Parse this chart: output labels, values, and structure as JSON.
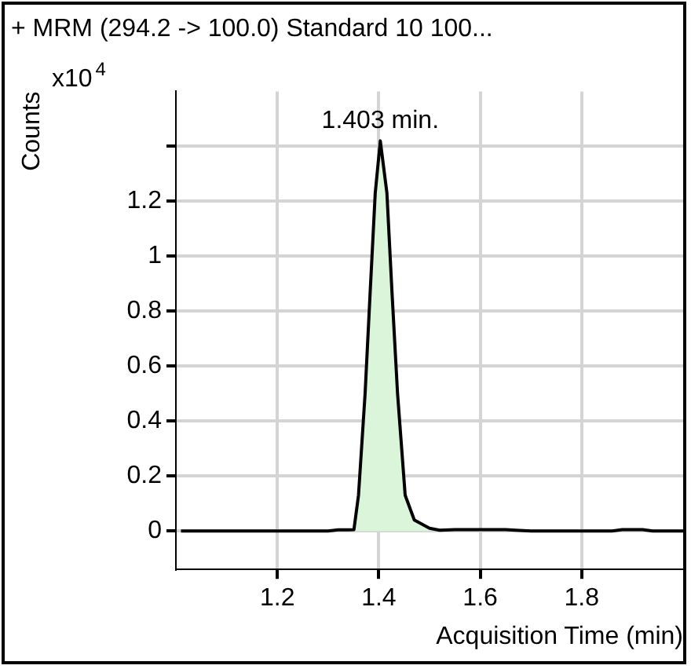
{
  "chart_data": {
    "type": "area",
    "title": "+ MRM (294.2 -> 100.0) Standard 10 100...",
    "xlabel": "Acquisition Time (min)",
    "ylabel": "Counts",
    "annotations": [
      "x10$^{4}$",
      {
        "text": "1.403 min.",
        "x": 1.403,
        "y": 1.42
      }
    ],
    "series": [
      {
        "color": "#dbf5db",
        "x": [
          1.01,
          1.1,
          1.2,
          1.3,
          1.32,
          1.34,
          1.351,
          1.36,
          1.373,
          1.383,
          1.393,
          1.403,
          1.416,
          1.426,
          1.437,
          1.452,
          1.47,
          1.5,
          1.52,
          1.55,
          1.6,
          1.65,
          1.67,
          1.7,
          1.8,
          1.86,
          1.88,
          1.92,
          1.94,
          2.0
        ],
        "values": [
          0,
          0,
          0,
          0,
          0.004,
          0.004,
          0.005,
          0.13,
          0.5,
          0.87,
          1.23,
          1.42,
          1.23,
          0.87,
          0.5,
          0.13,
          0.04,
          0.01,
          0.003,
          0.005,
          0.005,
          0.005,
          0.003,
          0,
          0,
          0,
          0.005,
          0.005,
          0,
          0
        ]
      }
    ],
    "xlim": [
      1.0,
      2.0
    ],
    "xticks": [
      1.2,
      1.4,
      1.6,
      1.8
    ],
    "ylim": [
      -0.14,
      1.6
    ],
    "yticks": [
      0,
      0.2,
      0.4,
      0.6,
      0.8,
      1,
      1.2,
      {
        "value": 1.4,
        "label": null
      }
    ],
    "grid": true,
    "legend": false
  }
}
